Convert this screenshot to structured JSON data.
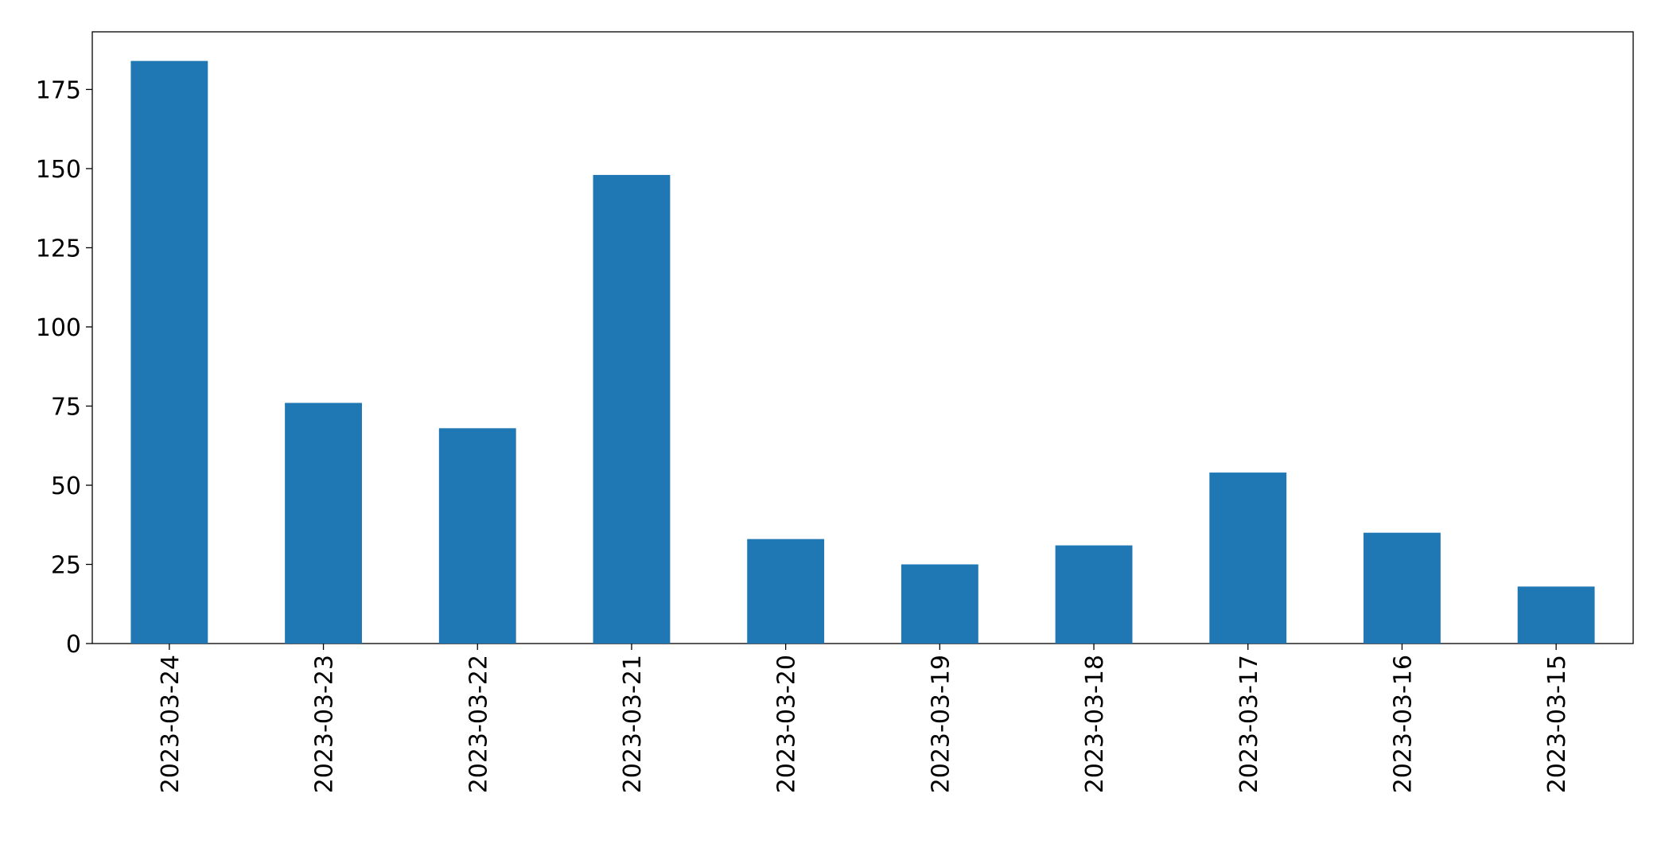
{
  "chart_data": {
    "type": "bar",
    "categories": [
      "2023-03-24",
      "2023-03-23",
      "2023-03-22",
      "2023-03-21",
      "2023-03-20",
      "2023-03-19",
      "2023-03-18",
      "2023-03-17",
      "2023-03-16",
      "2023-03-15"
    ],
    "values": [
      184,
      76,
      68,
      148,
      33,
      25,
      31,
      54,
      35,
      18
    ],
    "color": "#1f77b4",
    "ylim": [
      0,
      193.2
    ],
    "yticks": [
      0,
      25,
      50,
      75,
      100,
      125,
      150,
      175
    ],
    "grid": false
  }
}
